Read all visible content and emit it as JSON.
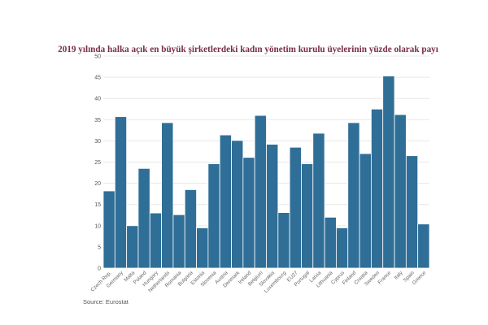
{
  "chart_data": {
    "type": "bar",
    "title": "2019 yılında halka açık en büyük şirketlerdeki kadın yönetim kurulu üyelerinin yüzde olarak payı",
    "xlabel": "",
    "ylabel": "",
    "ylim": [
      0,
      50
    ],
    "yticks": [
      0,
      5,
      10,
      15,
      20,
      25,
      30,
      35,
      40,
      45,
      50
    ],
    "grid": true,
    "legend": "none",
    "bar_color": "#2f6e97",
    "title_color": "#7a2f45",
    "categories": [
      "Czech Rep.",
      "Germany",
      "Malta",
      "Poland",
      "Hungary",
      "Netherlands",
      "Romania",
      "Bulgaria",
      "Estonia",
      "Slovenia",
      "Austria",
      "Denmark",
      "Ireland",
      "Belgium",
      "Slovakia",
      "Luxembourg",
      "EU27",
      "Portugal",
      "Latvia",
      "Lithuania",
      "Cyprus",
      "Finland",
      "Croatia",
      "Sweden",
      "France",
      "Italy",
      "Spain",
      "Greece"
    ],
    "values": [
      18.2,
      35.7,
      10.0,
      23.5,
      13.0,
      34.3,
      12.6,
      18.5,
      9.5,
      24.6,
      31.4,
      30.1,
      26.1,
      36.0,
      29.2,
      13.1,
      28.5,
      24.6,
      31.8,
      12.0,
      9.5,
      34.3,
      27.0,
      37.5,
      45.3,
      36.2,
      26.5,
      10.4
    ]
  },
  "source": "Source: Eurostat"
}
